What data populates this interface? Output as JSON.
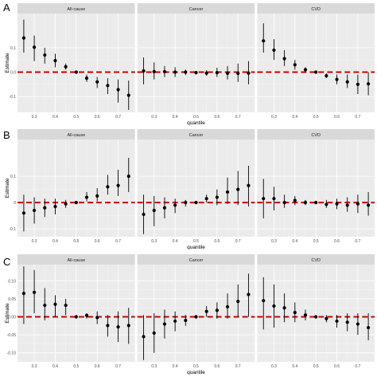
{
  "figure_title": "",
  "x_quantiles": [
    0.25,
    0.3,
    0.35,
    0.4,
    0.45,
    0.5,
    0.55,
    0.6,
    0.65,
    0.7,
    0.75
  ],
  "xtick_values": [
    0.3,
    0.4,
    0.5,
    0.6,
    0.7
  ],
  "colors": {
    "panel_bg": "#ebebeb",
    "grid_major": "#ffffff",
    "grid_minor": "#f5f5f5",
    "strip_bg": "#d9d9d9",
    "point": "#000000",
    "reference_line": "#cc0000",
    "tick_text": "#4d4d4d"
  },
  "chart_data": [
    {
      "type": "scatter",
      "panel_letter": "A",
      "ylabel": "Estimate",
      "xlabel": "quantile",
      "ylim": [
        -0.165,
        0.24
      ],
      "yticks": [
        0.1,
        0.0,
        -0.1
      ],
      "ytick_labels": [
        "0.1",
        "0.0",
        "-0.1"
      ],
      "reference_line_y": 0,
      "facets": [
        {
          "name": "All-cause",
          "estimate": [
            0.14,
            0.102,
            0.07,
            0.047,
            0.022,
            0.0,
            -0.025,
            -0.04,
            -0.055,
            -0.072,
            -0.095
          ],
          "lower": [
            0.08,
            0.045,
            0.035,
            0.02,
            0.01,
            -0.005,
            -0.04,
            -0.065,
            -0.09,
            -0.125,
            -0.155
          ],
          "upper": [
            0.215,
            0.15,
            0.1,
            0.075,
            0.035,
            0.005,
            -0.01,
            -0.02,
            -0.025,
            -0.03,
            -0.035
          ]
        },
        {
          "name": "Cancer",
          "estimate": [
            0.005,
            0.002,
            0.002,
            0.0,
            0.0,
            -0.002,
            -0.004,
            -0.002,
            -0.005,
            -0.005,
            -0.004
          ],
          "lower": [
            -0.05,
            -0.03,
            -0.02,
            -0.02,
            -0.012,
            -0.01,
            -0.015,
            -0.02,
            -0.03,
            -0.04,
            -0.05
          ],
          "upper": [
            0.06,
            0.04,
            0.025,
            0.02,
            0.01,
            0.005,
            0.008,
            0.018,
            0.025,
            0.035,
            0.045
          ]
        },
        {
          "name": "CVD",
          "estimate": [
            0.128,
            0.09,
            0.055,
            0.03,
            0.01,
            0.0,
            -0.015,
            -0.03,
            -0.04,
            -0.05,
            -0.048
          ],
          "lower": [
            0.08,
            0.05,
            0.025,
            0.01,
            0.0,
            -0.005,
            -0.025,
            -0.05,
            -0.065,
            -0.09,
            -0.095
          ],
          "upper": [
            0.2,
            0.135,
            0.09,
            0.05,
            0.02,
            0.005,
            -0.005,
            -0.01,
            -0.01,
            -0.01,
            0.0
          ]
        }
      ]
    },
    {
      "type": "scatter",
      "panel_letter": "B",
      "ylabel": "Estimate",
      "xlabel": "quantile",
      "ylim": [
        -0.13,
        0.24
      ],
      "yticks": [
        0.1,
        0.0,
        -0.1
      ],
      "ytick_labels": [
        "0.1",
        "0",
        "-0.1"
      ],
      "reference_line_y": 0,
      "facets": [
        {
          "name": "All-cause",
          "estimate": [
            -0.04,
            -0.03,
            -0.02,
            -0.015,
            -0.005,
            0.0,
            0.02,
            0.025,
            0.06,
            0.065,
            0.1
          ],
          "lower": [
            -0.11,
            -0.08,
            -0.055,
            -0.045,
            -0.02,
            -0.005,
            0.005,
            0.005,
            0.03,
            0.025,
            0.04
          ],
          "upper": [
            0.03,
            0.02,
            0.015,
            0.015,
            0.01,
            0.005,
            0.04,
            0.055,
            0.105,
            0.125,
            0.17
          ]
        },
        {
          "name": "Cancer",
          "estimate": [
            -0.045,
            -0.03,
            -0.02,
            -0.01,
            0.0,
            0.0,
            0.015,
            0.02,
            0.04,
            0.05,
            0.065
          ],
          "lower": [
            -0.12,
            -0.09,
            -0.06,
            -0.04,
            -0.015,
            -0.005,
            0.0,
            -0.01,
            -0.005,
            -0.01,
            -0.015
          ],
          "upper": [
            0.03,
            0.025,
            0.02,
            0.015,
            0.01,
            0.005,
            0.03,
            0.05,
            0.095,
            0.12,
            0.14
          ]
        },
        {
          "name": "CVD",
          "estimate": [
            0.015,
            0.015,
            0.0,
            0.008,
            0.0,
            0.0,
            -0.007,
            -0.005,
            -0.01,
            -0.005,
            -0.01
          ],
          "lower": [
            -0.06,
            -0.03,
            -0.02,
            -0.01,
            -0.01,
            -0.005,
            -0.02,
            -0.025,
            -0.035,
            -0.04,
            -0.05
          ],
          "upper": [
            0.09,
            0.06,
            0.03,
            0.025,
            0.01,
            0.005,
            0.01,
            0.015,
            0.02,
            0.03,
            0.04
          ]
        }
      ]
    },
    {
      "type": "scatter",
      "panel_letter": "C",
      "ylabel": "Estimate",
      "xlabel": "quantile",
      "ylim": [
        -0.125,
        0.145
      ],
      "yticks": [
        0.1,
        0.05,
        0.0,
        -0.05,
        -0.1
      ],
      "ytick_labels": [
        "0.10",
        "0.05",
        "0.00",
        "-0.05",
        "-0.10"
      ],
      "reference_line_y": 0,
      "facets": [
        {
          "name": "All-cause",
          "estimate": [
            0.065,
            0.068,
            0.032,
            0.035,
            0.032,
            0.0,
            0.004,
            -0.002,
            -0.024,
            -0.028,
            -0.024
          ],
          "lower": [
            -0.02,
            0.01,
            -0.01,
            0.0,
            0.005,
            -0.005,
            -0.005,
            -0.02,
            -0.055,
            -0.07,
            -0.075
          ],
          "upper": [
            0.14,
            0.13,
            0.08,
            0.06,
            0.05,
            0.005,
            0.01,
            0.015,
            0.005,
            0.015,
            0.025
          ]
        },
        {
          "name": "Cancer",
          "estimate": [
            -0.055,
            -0.045,
            -0.02,
            -0.012,
            -0.01,
            0.0,
            0.015,
            0.018,
            0.028,
            0.043,
            0.062
          ],
          "lower": [
            -0.12,
            -0.1,
            -0.06,
            -0.04,
            -0.025,
            -0.005,
            0.0,
            -0.005,
            -0.005,
            0.0,
            0.0
          ],
          "upper": [
            0.005,
            0.01,
            0.02,
            0.015,
            0.005,
            0.005,
            0.03,
            0.04,
            0.065,
            0.09,
            0.12
          ]
        },
        {
          "name": "CVD",
          "estimate": [
            0.045,
            0.03,
            0.025,
            0.012,
            0.005,
            0.0,
            -0.005,
            -0.012,
            -0.015,
            -0.02,
            -0.03
          ],
          "lower": [
            -0.035,
            -0.03,
            -0.015,
            -0.015,
            -0.01,
            -0.005,
            -0.015,
            -0.03,
            -0.04,
            -0.05,
            -0.065
          ],
          "upper": [
            0.11,
            0.09,
            0.065,
            0.04,
            0.02,
            0.005,
            0.005,
            0.005,
            0.01,
            0.01,
            0.01
          ]
        }
      ]
    }
  ]
}
